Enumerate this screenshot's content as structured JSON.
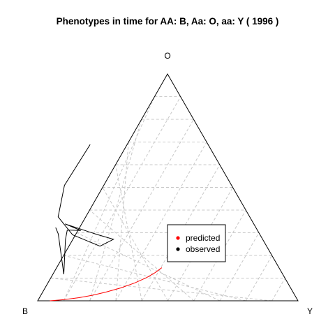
{
  "chart_data": {
    "type": "scatter",
    "title": "Phenotypes in time for  AA: B, Aa: O, aa: Y  ( 1996 )",
    "vertices": {
      "left": "B",
      "top": "O",
      "right": "Y"
    },
    "grid": true,
    "grid_divisions": 10,
    "legend": {
      "position": "lower-right",
      "entries": [
        "predicted",
        "observed"
      ]
    },
    "series": [
      {
        "name": "observed",
        "color": "#000000",
        "points": [
          {
            "B": 0.453,
            "O": 0.689,
            "Y": -0.142
          },
          {
            "B": 0.642,
            "O": 0.509,
            "Y": -0.151
          },
          {
            "B": 0.736,
            "O": 0.37,
            "Y": -0.106
          },
          {
            "B": 0.72,
            "O": 0.291,
            "Y": -0.011
          },
          {
            "B": 0.64,
            "O": 0.241,
            "Y": 0.119
          },
          {
            "B": 0.573,
            "O": 0.271,
            "Y": 0.156
          },
          {
            "B": 0.627,
            "O": 0.293,
            "Y": 0.08
          },
          {
            "B": 0.725,
            "O": 0.339,
            "Y": -0.064
          },
          {
            "B": 0.679,
            "O": 0.31,
            "Y": 0.011
          },
          {
            "B": 0.73,
            "O": 0.312,
            "Y": -0.042
          },
          {
            "B": 0.758,
            "O": 0.27,
            "Y": -0.028
          },
          {
            "B": 0.841,
            "O": 0.117,
            "Y": 0.042
          },
          {
            "B": 0.773,
            "O": 0.295,
            "Y": -0.068
          },
          {
            "B": 0.769,
            "O": 0.323,
            "Y": -0.092
          }
        ]
      },
      {
        "name": "predicted",
        "color": "#ff0000",
        "points": [
          {
            "B": 0.953,
            "O": 0.0,
            "Y": 0.047
          },
          {
            "B": 0.898,
            "O": 0.005,
            "Y": 0.097
          },
          {
            "B": 0.834,
            "O": 0.014,
            "Y": 0.152
          },
          {
            "B": 0.78,
            "O": 0.024,
            "Y": 0.196
          },
          {
            "B": 0.72,
            "O": 0.038,
            "Y": 0.242
          },
          {
            "B": 0.652,
            "O": 0.057,
            "Y": 0.291
          },
          {
            "B": 0.587,
            "O": 0.079,
            "Y": 0.334
          },
          {
            "B": 0.529,
            "O": 0.103,
            "Y": 0.368
          },
          {
            "B": 0.487,
            "O": 0.124,
            "Y": 0.389
          },
          {
            "B": 0.45,
            "O": 0.146,
            "Y": 0.404
          }
        ]
      }
    ]
  }
}
